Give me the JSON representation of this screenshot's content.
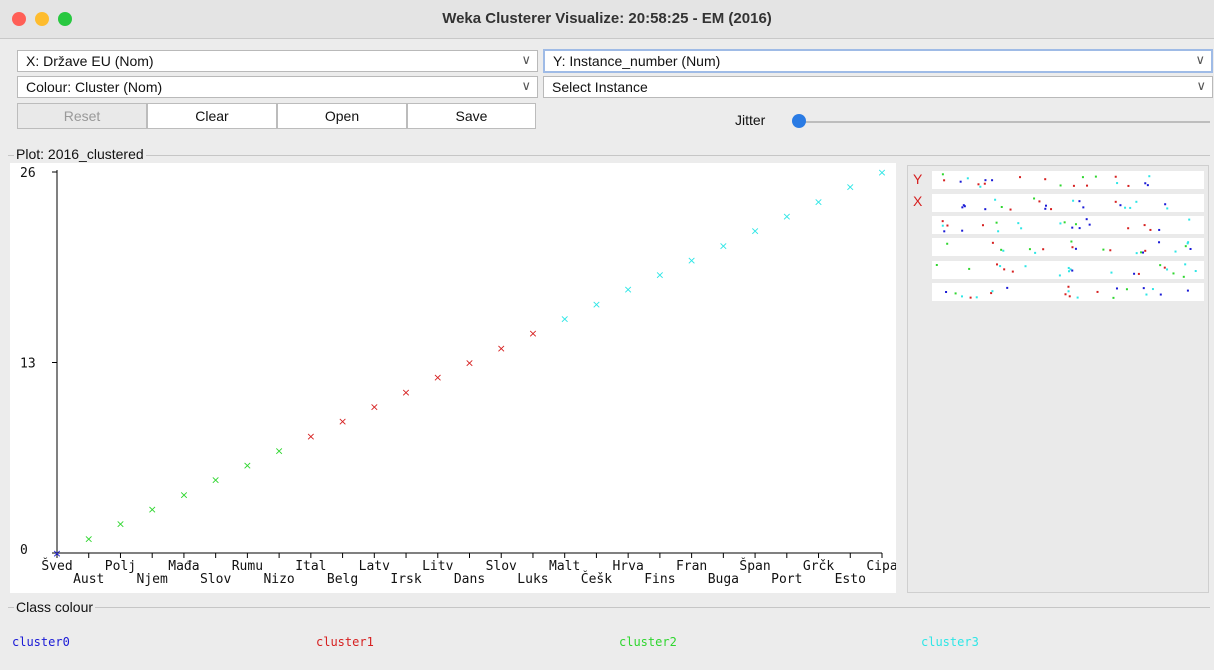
{
  "window": {
    "title": "Weka Clusterer Visualize: 20:58:25 - EM (2016)"
  },
  "controls": {
    "x_axis": "X:  Države EU (Nom)",
    "y_axis": "Y: Instance_number (Num)",
    "colour": "Colour: Cluster (Nom)",
    "select_instance": "Select Instance",
    "reset": "Reset",
    "clear": "Clear",
    "open": "Open",
    "save": "Save",
    "jitter": "Jitter",
    "jitter_value": 0
  },
  "plot": {
    "title": "Plot: 2016_clustered",
    "matrix_labels": [
      "Y",
      "X"
    ]
  },
  "legend": {
    "title": "Class colour",
    "items": [
      {
        "name": "cluster0",
        "color": "#1a1ad6"
      },
      {
        "name": "cluster1",
        "color": "#d62020"
      },
      {
        "name": "cluster2",
        "color": "#2fd62f"
      },
      {
        "name": "cluster3",
        "color": "#2ee6e6"
      }
    ]
  },
  "chart_data": {
    "type": "scatter",
    "x_categories": [
      "Šved",
      "Aust",
      "Polj",
      "Njem",
      "Mađa",
      "Slov",
      "Rumu",
      "Nizo",
      "Ital",
      "Belg",
      "Latv",
      "Irsk",
      "Litv",
      "Dans",
      "Slov",
      "Luks",
      "Malt",
      "Češk",
      "Hrva",
      "Fins",
      "Fran",
      "Buga",
      "Španj",
      "Port",
      "Grčk",
      "Esto",
      "Cipa"
    ],
    "x_tick_labels": [
      "Šved",
      "Aust",
      "Polj",
      "Njem",
      "Mađa",
      "Slov",
      "Rumu",
      "Nizo",
      "Ital",
      "Belg",
      "Latv",
      "Irsk",
      "Litv",
      "Dans",
      "Slov",
      "Luks",
      "Malt",
      "Češk",
      "Hrva",
      "Fins",
      "Fran",
      "Buga",
      "Špan",
      "Port",
      "Grčk",
      "Esto",
      "Cipa"
    ],
    "ylim": [
      0,
      26
    ],
    "y_ticks": [
      0,
      13,
      26
    ],
    "points": [
      {
        "x": "Šved",
        "y": 0,
        "cluster": "cluster0"
      },
      {
        "x": "Aust",
        "y": 1,
        "cluster": "cluster2"
      },
      {
        "x": "Polj",
        "y": 2,
        "cluster": "cluster2"
      },
      {
        "x": "Njem",
        "y": 3,
        "cluster": "cluster2"
      },
      {
        "x": "Mađa",
        "y": 4,
        "cluster": "cluster2"
      },
      {
        "x": "Slov",
        "y": 5,
        "cluster": "cluster2"
      },
      {
        "x": "Rumu",
        "y": 6,
        "cluster": "cluster2"
      },
      {
        "x": "Nizo",
        "y": 7,
        "cluster": "cluster2"
      },
      {
        "x": "Ital",
        "y": 8,
        "cluster": "cluster1"
      },
      {
        "x": "Belg",
        "y": 9,
        "cluster": "cluster1"
      },
      {
        "x": "Latv",
        "y": 10,
        "cluster": "cluster1"
      },
      {
        "x": "Irsk",
        "y": 11,
        "cluster": "cluster1"
      },
      {
        "x": "Litv",
        "y": 12,
        "cluster": "cluster1"
      },
      {
        "x": "Dans",
        "y": 13,
        "cluster": "cluster1"
      },
      {
        "x": "Slov",
        "y": 14,
        "cluster": "cluster1"
      },
      {
        "x": "Luks",
        "y": 15,
        "cluster": "cluster1"
      },
      {
        "x": "Malt",
        "y": 16,
        "cluster": "cluster3"
      },
      {
        "x": "Češk",
        "y": 17,
        "cluster": "cluster3"
      },
      {
        "x": "Hrva",
        "y": 18,
        "cluster": "cluster3"
      },
      {
        "x": "Fins",
        "y": 19,
        "cluster": "cluster3"
      },
      {
        "x": "Fran",
        "y": 20,
        "cluster": "cluster3"
      },
      {
        "x": "Buga",
        "y": 21,
        "cluster": "cluster3"
      },
      {
        "x": "Španj",
        "y": 22,
        "cluster": "cluster3"
      },
      {
        "x": "Port",
        "y": 23,
        "cluster": "cluster3"
      },
      {
        "x": "Grčk",
        "y": 24,
        "cluster": "cluster3"
      },
      {
        "x": "Esto",
        "y": 25,
        "cluster": "cluster3"
      },
      {
        "x": "Cipa",
        "y": 26,
        "cluster": "cluster3"
      }
    ]
  }
}
